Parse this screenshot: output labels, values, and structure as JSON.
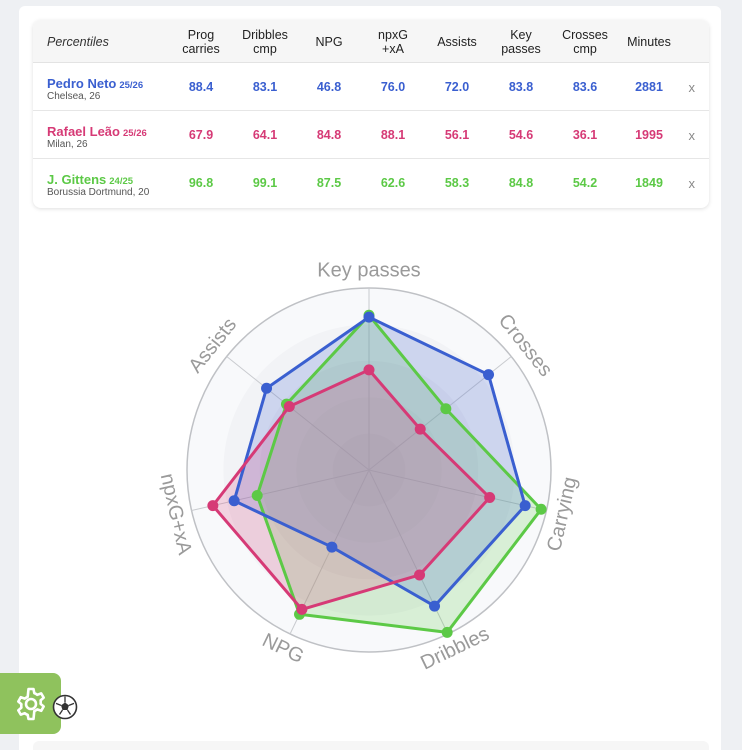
{
  "table": {
    "header": {
      "percentiles": "Percentiles",
      "columns": [
        "Prog\ncarries",
        "Dribbles\ncmp",
        "NPG",
        "npxG\n+xA",
        "Assists",
        "Key\npasses",
        "Crosses\ncmp",
        "Minutes"
      ]
    },
    "players": [
      {
        "name": "Pedro Neto",
        "season": "25/26",
        "club": "Chelsea, 26",
        "color": "#3a5fd0",
        "values": [
          "88.4",
          "83.1",
          "46.8",
          "76.0",
          "72.0",
          "83.8",
          "83.6",
          "2881"
        ],
        "remove": "x"
      },
      {
        "name": "Rafael Leão",
        "season": "25/26",
        "club": "Milan, 26",
        "color": "#d63a76",
        "values": [
          "67.9",
          "64.1",
          "84.8",
          "88.1",
          "56.1",
          "54.6",
          "36.1",
          "1995"
        ],
        "remove": "x"
      },
      {
        "name": "J. Gittens",
        "season": "24/25",
        "club": "Borussia Dortmund, 20",
        "color": "#5cc946",
        "values": [
          "96.8",
          "99.1",
          "87.5",
          "62.6",
          "58.3",
          "84.8",
          "54.2",
          "1849"
        ],
        "remove": "x"
      }
    ]
  },
  "chart_data": {
    "type": "radar",
    "axes": [
      "Key passes",
      "Crosses",
      "Carrying",
      "Dribbles",
      "NPG",
      "npxG+xA",
      "Assists"
    ],
    "range": [
      0,
      100
    ],
    "series": [
      {
        "name": "Pedro Neto",
        "color": "#3a5fd0",
        "values": [
          84,
          84,
          88,
          83,
          47,
          76,
          72
        ]
      },
      {
        "name": "Rafael Leão",
        "color": "#d63a76",
        "values": [
          55,
          36,
          68,
          64,
          85,
          88,
          56
        ]
      },
      {
        "name": "J. Gittens",
        "color": "#5cc946",
        "values": [
          85,
          54,
          97,
          99,
          88,
          63,
          58
        ]
      }
    ]
  },
  "icons": {
    "settings": "gear-icon",
    "logo": "soccer-ball-icon"
  }
}
